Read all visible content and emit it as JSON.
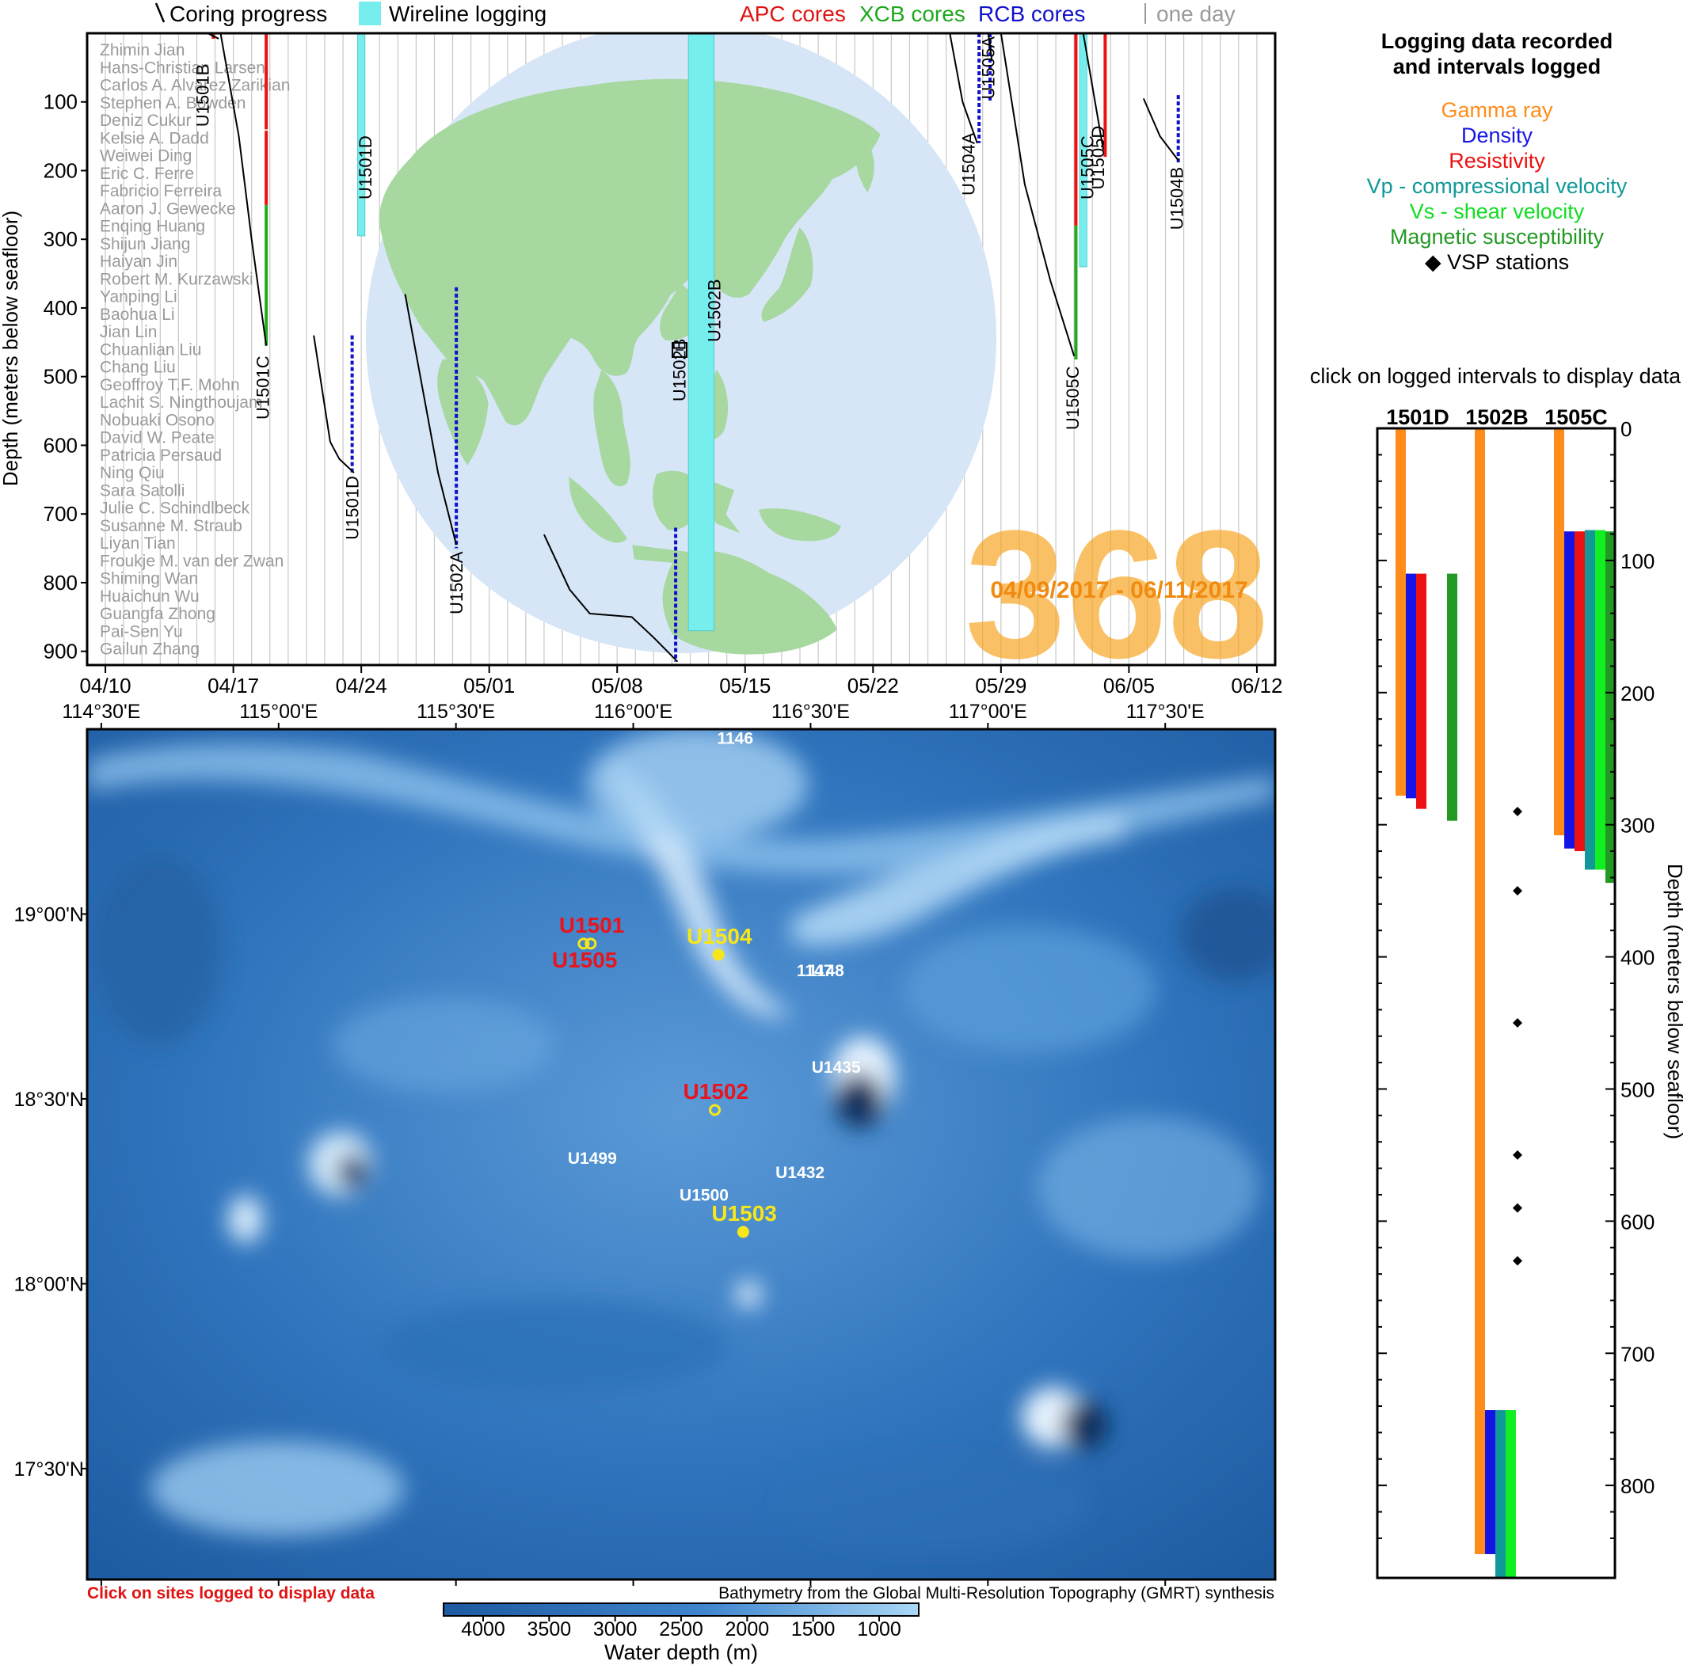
{
  "legend_top": {
    "coring": "Coring progress",
    "wireline": "Wireline logging",
    "apc": "APC cores",
    "xcb": "XCB cores",
    "rcb": "RCB cores",
    "oneday": "one day"
  },
  "colors": {
    "apc": "#ee1111",
    "xcb": "#22aa22",
    "rcb": "#1111cc",
    "wireline": "#77eeee",
    "gamma": "#ff8c1a",
    "density": "#1414e6",
    "resistivity": "#ee1111",
    "vp": "#119999",
    "vs": "#11ee22",
    "magsus": "#229922",
    "expedition": "#f7a21c",
    "site_red": "#e8141e",
    "site_yellow": "#f6e61a",
    "ocean": "#d6e6f6",
    "land": "#a6d8a0"
  },
  "expedition": {
    "number": "368",
    "dates": "04/09/2017 - 06/11/2017"
  },
  "scientists": [
    "Zhimin Jian",
    "Hans-Christian Larsen",
    "Carlos A. Alvarez Zarikian",
    "Stephen A. Bowden",
    "Deniz Cukur",
    "Kelsie A. Dadd",
    "Weiwei Ding",
    "Eric C. Ferre",
    "Fabricio Ferreira",
    "Aaron J. Gewecke",
    "Enqing Huang",
    "Shijun Jiang",
    "Haiyan Jin",
    "Robert M. Kurzawski",
    "Yanping Li",
    "Baohua Li",
    "Jian Lin",
    "Chuanlian Liu",
    "Chang Liu",
    "Geoffroy T.F. Mohn",
    "Lachit S. Ningthoujam",
    "Nobuaki Osono",
    "David W. Peate",
    "Patricia Persaud",
    "Ning Qiu",
    "Sara Satolli",
    "Julie C. Schindlbeck",
    "Susanne M. Straub",
    "Liyan Tian",
    "Froukje M. van der Zwan",
    "Shiming Wan",
    "Huaichun Wu",
    "Guangfa Zhong",
    "Pai-Sen Yu",
    "Gailun Zhang"
  ],
  "right_legend": {
    "title1": "Logging data recorded",
    "title2": "and intervals logged",
    "gamma": "Gamma ray",
    "density": "Density",
    "resistivity": "Resistivity",
    "vp": "Vp - compressional velocity",
    "vs": "Vs - shear velocity",
    "magsus": "Magnetic susceptibility",
    "vsp": "◆ VSP stations",
    "click": "click on logged intervals to display data"
  },
  "bottom_text": {
    "click_sites": "Click on sites logged to display data",
    "credit": "Bathymetry from the Global Multi-Resolution Topography (GMRT) synthesis",
    "colorbar_label": "Water depth (m)"
  },
  "chart_data": [
    {
      "type": "line",
      "ylabel": "Depth (meters below seafloor)",
      "x_type": "date",
      "xlim": [
        "2017-04-09",
        "2017-06-13"
      ],
      "ylim": [
        0,
        920
      ],
      "y_reversed": true,
      "xticks": [
        {
          "x": "2017-04-10",
          "label": "04/10"
        },
        {
          "x": "2017-04-17",
          "label": "04/17"
        },
        {
          "x": "2017-04-24",
          "label": "04/24"
        },
        {
          "x": "2017-05-01",
          "label": "05/01"
        },
        {
          "x": "2017-05-08",
          "label": "05/08"
        },
        {
          "x": "2017-05-15",
          "label": "05/15"
        },
        {
          "x": "2017-05-22",
          "label": "05/22"
        },
        {
          "x": "2017-05-29",
          "label": "05/29"
        },
        {
          "x": "2017-06-05",
          "label": "06/05"
        },
        {
          "x": "2017-06-12",
          "label": "06/12"
        }
      ],
      "yticks": [
        100,
        200,
        300,
        400,
        500,
        600,
        700,
        800,
        900
      ],
      "coring_lines": [
        {
          "hole": "U1501B",
          "label_day": 6.3,
          "label_depth": 40,
          "points": [
            [
              6.6,
              0
            ],
            [
              7.2,
              8
            ]
          ]
        },
        {
          "hole": "U1501C",
          "label_day": 9.6,
          "label_depth": 465,
          "points": [
            [
              7.3,
              0
            ],
            [
              8.3,
              150
            ],
            [
              9.0,
              300
            ],
            [
              9.8,
              455
            ]
          ]
        },
        {
          "hole": "U1501D",
          "label_day": 14.5,
          "label_depth": 640,
          "points": [
            [
              12.4,
              440
            ],
            [
              13.3,
              595
            ],
            [
              13.8,
              620
            ],
            [
              14.6,
              640
            ]
          ]
        },
        {
          "hole": "U1502A",
          "label_day": 20.2,
          "label_depth": 750,
          "points": [
            [
              17.4,
              380
            ],
            [
              18.3,
              510
            ],
            [
              19.2,
              640
            ],
            [
              20.2,
              745
            ]
          ]
        },
        {
          "hole": "U1502B",
          "label_day": 32.4,
          "label_depth": 440,
          "points": [
            [
              25.0,
              730
            ],
            [
              26.4,
              810
            ],
            [
              27.5,
              845
            ],
            [
              29.8,
              850
            ],
            [
              31.0,
              880
            ],
            [
              32.3,
              915
            ]
          ]
        },
        {
          "hole": "U1504A",
          "label_day": 48.2,
          "label_depth": 140,
          "points": [
            [
              47.2,
              0
            ],
            [
              47.9,
              100
            ],
            [
              48.7,
              160
            ]
          ]
        },
        {
          "hole": "U1505A",
          "label_day": 49.3,
          "label_depth": 0,
          "points": [
            [
              49.3,
              0
            ],
            [
              49.5,
              40
            ]
          ]
        },
        {
          "hole": "U1505C",
          "label_day": 53.9,
          "label_depth": 480,
          "points": [
            [
              50.0,
              0
            ],
            [
              51.3,
              220
            ],
            [
              52.7,
              360
            ],
            [
              54.0,
              470
            ]
          ]
        },
        {
          "hole": "U1505D",
          "label_day": 55.3,
          "label_depth": 130,
          "points": [
            [
              54.5,
              0
            ],
            [
              55.6,
              170
            ]
          ]
        },
        {
          "hole": "U1504B",
          "label_day": 59.6,
          "label_depth": 190,
          "points": [
            [
              57.8,
              95
            ],
            [
              58.7,
              150
            ],
            [
              59.7,
              185
            ]
          ]
        }
      ],
      "core_bars": [
        {
          "type": "apc",
          "day": 6.9,
          "from": 0,
          "to": 8
        },
        {
          "type": "apc",
          "day": 9.8,
          "from": 0,
          "to": 140
        },
        {
          "type": "apc",
          "day": 9.8,
          "from": 142,
          "to": 250
        },
        {
          "type": "xcb",
          "day": 9.8,
          "from": 250,
          "to": 455
        },
        {
          "type": "rcb",
          "day": 14.5,
          "from": 440,
          "to": 640
        },
        {
          "type": "rcb",
          "day": 20.2,
          "from": 370,
          "to": 750
        },
        {
          "type": "rcb",
          "day": 32.2,
          "from": 720,
          "to": 915
        },
        {
          "type": "rcb",
          "day": 48.8,
          "from": 0,
          "to": 160
        },
        {
          "type": "rcb",
          "day": 49.4,
          "from": 0,
          "to": 100
        },
        {
          "type": "apc",
          "day": 54.1,
          "from": 0,
          "to": 280
        },
        {
          "type": "xcb",
          "day": 54.1,
          "from": 280,
          "to": 475
        },
        {
          "type": "apc",
          "day": 55.7,
          "from": 0,
          "to": 180
        },
        {
          "type": "rcb",
          "day": 59.7,
          "from": 90,
          "to": 190
        }
      ],
      "wireline": [
        {
          "hole": "U1501D",
          "day_start": 14.8,
          "day_end": 15.2,
          "from": 0,
          "to": 295
        },
        {
          "hole": "U1502B",
          "day_start": 32.9,
          "day_end": 34.3,
          "from": 0,
          "to": 870
        },
        {
          "hole": "U1505C",
          "day_start": 54.3,
          "day_end": 54.7,
          "from": 0,
          "to": 340
        }
      ]
    },
    {
      "type": "scatter",
      "xlabel": "",
      "ylabel": "",
      "xlim": [
        114.46,
        117.81
      ],
      "ylim": [
        17.2,
        19.5
      ],
      "xticks": [
        {
          "x": 114.5,
          "label": "114°30'E"
        },
        {
          "x": 115.0,
          "label": "115°00'E"
        },
        {
          "x": 115.5,
          "label": "115°30'E"
        },
        {
          "x": 116.0,
          "label": "116°00'E"
        },
        {
          "x": 116.5,
          "label": "116°30'E"
        },
        {
          "x": 117.0,
          "label": "117°00'E"
        },
        {
          "x": 117.5,
          "label": "117°30'E"
        }
      ],
      "yticks": [
        {
          "y": 19.0,
          "label": "19°00'N"
        },
        {
          "y": 18.5,
          "label": "18°30'N"
        },
        {
          "y": 18.0,
          "label": "18°00'N"
        },
        {
          "y": 17.5,
          "label": "17°30'N"
        }
      ],
      "sites": [
        {
          "name": "U1501",
          "lon": 115.88,
          "lat": 18.92,
          "status": "logged"
        },
        {
          "name": "U1505",
          "lon": 115.86,
          "lat": 18.92,
          "status": "logged"
        },
        {
          "name": "U1504",
          "lon": 116.24,
          "lat": 18.89,
          "status": "drilled"
        },
        {
          "name": "U1502",
          "lon": 116.23,
          "lat": 18.47,
          "status": "logged"
        },
        {
          "name": "U1503",
          "lon": 116.31,
          "lat": 18.14,
          "status": "drilled"
        },
        {
          "name": "U1499",
          "lon": 115.86,
          "lat": 18.41,
          "status": "previous"
        },
        {
          "name": "U1500",
          "lon": 116.22,
          "lat": 18.31,
          "status": "previous"
        },
        {
          "name": "U1432",
          "lon": 116.39,
          "lat": 18.35,
          "status": "previous"
        },
        {
          "name": "U1435",
          "lon": 116.57,
          "lat": 18.56,
          "status": "previous"
        },
        {
          "name": "1146",
          "lon": 116.27,
          "lat": 19.46,
          "status": "previous"
        },
        {
          "name": "1147",
          "lon": 116.55,
          "lat": 18.84,
          "status": "previous"
        },
        {
          "name": "1148",
          "lon": 116.56,
          "lat": 18.84,
          "status": "previous"
        }
      ],
      "colorbar": {
        "label": "Water depth (m)",
        "ticks": [
          4000,
          3500,
          3000,
          2500,
          2000,
          1500,
          1000
        ],
        "range": [
          4300,
          700
        ]
      }
    },
    {
      "type": "bar",
      "ylabel": "Depth (meters below seafloor)",
      "ylim": [
        0,
        870
      ],
      "y_reversed": true,
      "yticks": [
        0,
        100,
        200,
        300,
        400,
        500,
        600,
        700,
        800
      ],
      "categories": [
        "1501D",
        "1502B",
        "1505C"
      ],
      "series": [
        {
          "name": "Gamma ray",
          "key": "gamma",
          "intervals": [
            [
              0,
              278
            ],
            [
              0,
              852
            ],
            [
              0,
              308
            ]
          ]
        },
        {
          "name": "Density",
          "key": "density",
          "intervals": [
            [
              110,
              280
            ],
            [
              743,
              852
            ],
            [
              78,
              318
            ]
          ]
        },
        {
          "name": "Resistivity",
          "key": "resistivity",
          "intervals": [
            [
              110,
              288
            ],
            null,
            [
              78,
              320
            ]
          ]
        },
        {
          "name": "Vp - compressional velocity",
          "key": "vp",
          "intervals": [
            null,
            [
              743,
              870
            ],
            [
              77,
              334
            ]
          ]
        },
        {
          "name": "Vs - shear velocity",
          "key": "vs",
          "intervals": [
            null,
            [
              743,
              870
            ],
            [
              77,
              334
            ]
          ]
        },
        {
          "name": "Magnetic susceptibility",
          "key": "magsus",
          "intervals": [
            [
              110,
              297
            ],
            null,
            [
              78,
              344
            ]
          ]
        }
      ],
      "vsp_stations": {
        "hole": "1502B",
        "depths": [
          290,
          350,
          450,
          550,
          590,
          630
        ]
      }
    }
  ]
}
